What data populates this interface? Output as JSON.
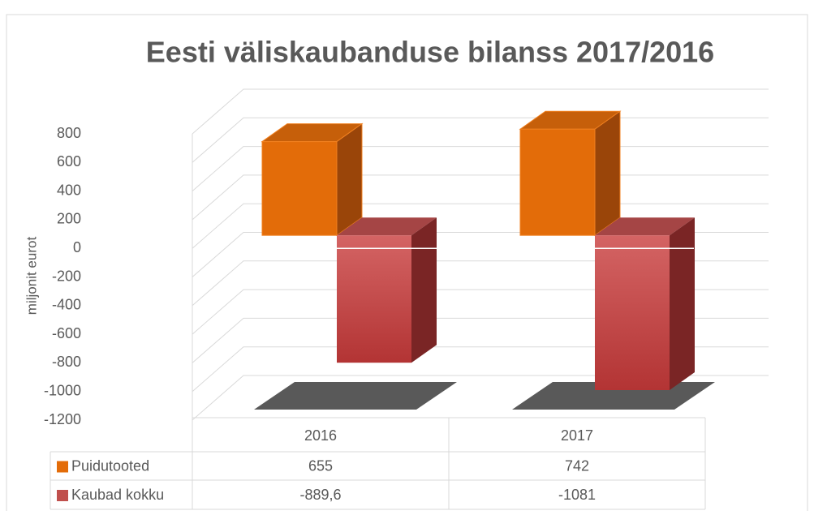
{
  "chart_data": {
    "type": "bar",
    "title": "Eesti väliskaubanduse bilanss 2017/2016",
    "y_label": "miljonit eurot",
    "categories": [
      "2016",
      "2017"
    ],
    "series": [
      {
        "name": "Puidutooted",
        "color": "#e36c09",
        "values": [
          655,
          742
        ]
      },
      {
        "name": "Kaubad kokku",
        "color": "#c0504d",
        "values": [
          -889.6,
          -1081
        ],
        "value_labels": [
          "-889,6",
          "-1081"
        ]
      }
    ],
    "ylim": [
      -1200,
      800
    ],
    "yticks": [
      800,
      600,
      400,
      200,
      0,
      -200,
      -400,
      -600,
      -800,
      -1000,
      -1200
    ],
    "grid": true
  }
}
